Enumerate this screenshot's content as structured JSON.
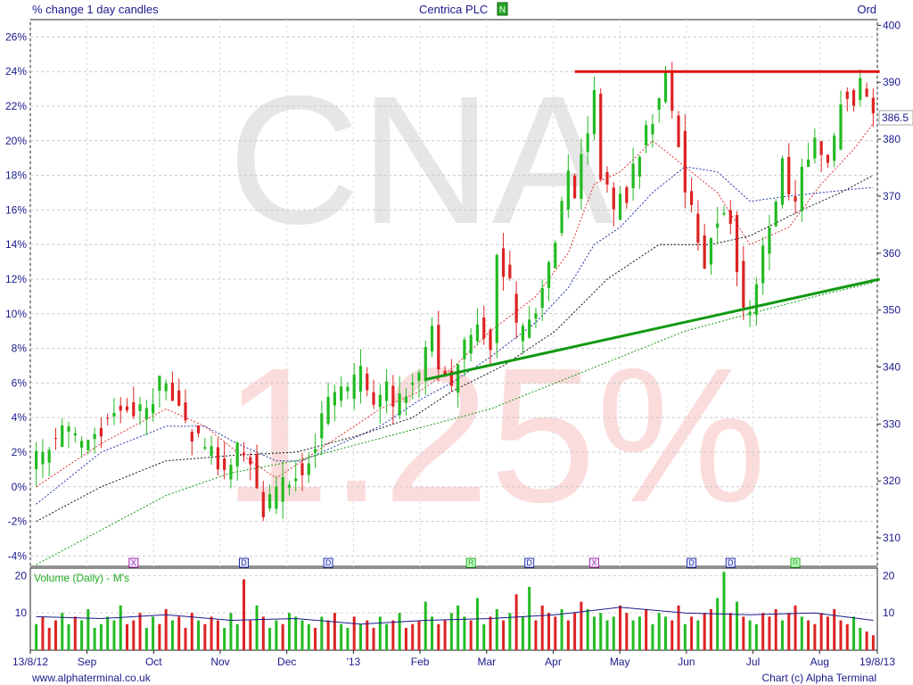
{
  "header": {
    "left_title": "% change 1 day candles",
    "center_title": "Centrica PLC",
    "center_badge": "N",
    "right_title": "Ord"
  },
  "watermark": {
    "ticker": "CNA",
    "change": "1.25%"
  },
  "footer": {
    "left": "www.alphaterminal.co.uk",
    "right": "Chart (c) Alpha Terminal"
  },
  "colors": {
    "up": "#22bb22",
    "down": "#dd2222",
    "axis_text": "#1a1a8c",
    "resistance": "#dd1111",
    "support": "#119911",
    "watermark_ticker": "#e6e6e6",
    "watermark_change": "#fbdcdc"
  },
  "chart_data": [
    {
      "type": "candlestick",
      "title": "Centrica PLC",
      "xlabel": "",
      "ylabel": "",
      "x_range": [
        "13/8/12",
        "19/8/13"
      ],
      "x_tick_labels": [
        "13/8/12",
        "Sep",
        "Oct",
        "Nov",
        "Dec",
        "'13",
        "Feb",
        "Mar",
        "Apr",
        "May",
        "Jun",
        "Jul",
        "Aug",
        "19/8/13"
      ],
      "y_left_ticks": [
        "26%",
        "24%",
        "22%",
        "20%",
        "18%",
        "16%",
        "14%",
        "12%",
        "10%",
        "8%",
        "6%",
        "4%",
        "2%",
        "0%",
        "-2%",
        "-4%"
      ],
      "y_left_range": [
        -4.6,
        27
      ],
      "y_right_ticks": [
        "400",
        "390",
        "380",
        "370",
        "360",
        "350",
        "340",
        "330",
        "320",
        "310"
      ],
      "y_right_range": [
        305,
        401
      ],
      "last_price_label": "386.5",
      "grid": true,
      "price_path_pct": [
        [
          0,
          1.5
        ],
        [
          4,
          3.2
        ],
        [
          8,
          2.5
        ],
        [
          12,
          4.5
        ],
        [
          16,
          4.2
        ],
        [
          20,
          6.5
        ],
        [
          21,
          5.5
        ],
        [
          23,
          3.5
        ],
        [
          27,
          2.0
        ],
        [
          29,
          1.0
        ],
        [
          31,
          2.5
        ],
        [
          33,
          1.5
        ],
        [
          35,
          -1.5
        ],
        [
          36,
          -1.0
        ],
        [
          38,
          0.0
        ],
        [
          40,
          1.0
        ],
        [
          42,
          1.5
        ],
        [
          44,
          4.0
        ],
        [
          46,
          5.5
        ],
        [
          48,
          5.5
        ],
        [
          50,
          6.5
        ],
        [
          52,
          4.5
        ],
        [
          54,
          5.5
        ],
        [
          55,
          4.5
        ],
        [
          57,
          5.5
        ],
        [
          59,
          6.5
        ],
        [
          61,
          9.5
        ],
        [
          62,
          7.0
        ],
        [
          63,
          6.5
        ],
        [
          64,
          6.0
        ],
        [
          66,
          8.0
        ],
        [
          68,
          9.5
        ],
        [
          70,
          8.5
        ],
        [
          71,
          13.5
        ],
        [
          73,
          11.5
        ],
        [
          74,
          9.0
        ],
        [
          75,
          9.0
        ],
        [
          77,
          10.0
        ],
        [
          79,
          13.0
        ],
        [
          81,
          16.0
        ],
        [
          82,
          18.5
        ],
        [
          83,
          17.0
        ],
        [
          84,
          19.0
        ],
        [
          86,
          22.5
        ],
        [
          87,
          18.0
        ],
        [
          89,
          16.0
        ],
        [
          90,
          17.5
        ],
        [
          91,
          17.0
        ],
        [
          92,
          18.5
        ],
        [
          93,
          19.5
        ],
        [
          95,
          21.5
        ],
        [
          97,
          23.5
        ],
        [
          98,
          21.5
        ],
        [
          99,
          20.0
        ],
        [
          100,
          17.0
        ],
        [
          101,
          16.0
        ],
        [
          102,
          14.5
        ],
        [
          103,
          12.5
        ],
        [
          104,
          14.5
        ],
        [
          105,
          15.5
        ],
        [
          106,
          16.0
        ],
        [
          107,
          15.5
        ],
        [
          108,
          13.0
        ],
        [
          109,
          10.5
        ],
        [
          110,
          10.0
        ],
        [
          111,
          12.0
        ],
        [
          113,
          15.0
        ],
        [
          114,
          16.5
        ],
        [
          115,
          18.5
        ],
        [
          116,
          17.0
        ],
        [
          117,
          16.5
        ],
        [
          119,
          19.5
        ],
        [
          120,
          20.5
        ],
        [
          121,
          19.0
        ],
        [
          122,
          18.5
        ],
        [
          123,
          20.0
        ],
        [
          124,
          22.5
        ],
        [
          125,
          23.0
        ],
        [
          126,
          22.0
        ],
        [
          127,
          23.5
        ],
        [
          128,
          22.5
        ],
        [
          129,
          21.0
        ]
      ],
      "moving_averages": {
        "red_short_pct": [
          [
            0,
            0.0
          ],
          [
            10,
            2.5
          ],
          [
            20,
            4.5
          ],
          [
            26,
            3.5
          ],
          [
            31,
            2.0
          ],
          [
            37,
            0.5
          ],
          [
            41,
            1.5
          ],
          [
            47,
            3.0
          ],
          [
            53,
            4.5
          ],
          [
            59,
            5.5
          ],
          [
            64,
            6.8
          ],
          [
            70,
            9.0
          ],
          [
            77,
            11.0
          ],
          [
            82,
            13.5
          ],
          [
            86,
            17.5
          ],
          [
            90,
            18.2
          ],
          [
            95,
            20.0
          ],
          [
            100,
            18.5
          ],
          [
            105,
            17.0
          ],
          [
            110,
            14.0
          ],
          [
            116,
            15.0
          ],
          [
            121,
            17.5
          ],
          [
            126,
            19.5
          ],
          [
            129,
            21.0
          ]
        ],
        "blue_medium_pct": [
          [
            0,
            -1.0
          ],
          [
            10,
            2.0
          ],
          [
            20,
            3.5
          ],
          [
            26,
            3.5
          ],
          [
            31,
            2.5
          ],
          [
            37,
            1.5
          ],
          [
            41,
            1.5
          ],
          [
            47,
            2.5
          ],
          [
            53,
            3.5
          ],
          [
            59,
            5.0
          ],
          [
            64,
            6.0
          ],
          [
            70,
            7.5
          ],
          [
            77,
            9.5
          ],
          [
            82,
            11.5
          ],
          [
            86,
            14.0
          ],
          [
            90,
            15.0
          ],
          [
            95,
            17.0
          ],
          [
            100,
            18.5
          ],
          [
            105,
            18.2
          ],
          [
            110,
            16.5
          ],
          [
            116,
            16.8
          ],
          [
            121,
            17.0
          ],
          [
            126,
            17.2
          ],
          [
            129,
            17.3
          ]
        ],
        "black_long_pct": [
          [
            0,
            -2.0
          ],
          [
            10,
            0.0
          ],
          [
            20,
            1.5
          ],
          [
            30,
            1.8
          ],
          [
            40,
            2.0
          ],
          [
            50,
            3.0
          ],
          [
            58,
            4.0
          ],
          [
            64,
            5.5
          ],
          [
            72,
            7.0
          ],
          [
            80,
            9.0
          ],
          [
            88,
            12.0
          ],
          [
            96,
            14.0
          ],
          [
            104,
            14.0
          ],
          [
            110,
            14.5
          ],
          [
            118,
            16.0
          ],
          [
            124,
            17.0
          ],
          [
            129,
            18.0
          ]
        ],
        "green_longest_pct": [
          [
            0,
            -4.5
          ],
          [
            10,
            -2.5
          ],
          [
            20,
            -0.5
          ],
          [
            30,
            0.8
          ],
          [
            40,
            1.5
          ],
          [
            50,
            2.5
          ],
          [
            60,
            3.5
          ],
          [
            70,
            4.5
          ],
          [
            80,
            6.0
          ],
          [
            90,
            7.5
          ],
          [
            100,
            9.0
          ],
          [
            110,
            10.0
          ],
          [
            120,
            11.0
          ],
          [
            129,
            11.8
          ]
        ]
      },
      "trendlines": {
        "resistance": {
          "from": [
            83,
            24.0
          ],
          "to": [
            130,
            24.0
          ]
        },
        "support": {
          "from": [
            60,
            6.2
          ],
          "to": [
            130,
            12.0
          ]
        }
      },
      "event_markers": [
        {
          "type": "X",
          "at": 15
        },
        {
          "type": "D",
          "at": 32
        },
        {
          "type": "D",
          "at": 45
        },
        {
          "type": "R",
          "at": 67
        },
        {
          "type": "D",
          "at": 76
        },
        {
          "type": "X",
          "at": 86
        },
        {
          "type": "D",
          "at": 101
        },
        {
          "type": "D",
          "at": 107
        },
        {
          "type": "R",
          "at": 117
        }
      ]
    },
    {
      "type": "bar",
      "title": "Volume (Daily) - M's",
      "y_ticks": [
        "20",
        "10"
      ],
      "y_range": [
        0,
        22
      ],
      "volume_avg_m": [
        [
          0,
          9.0
        ],
        [
          10,
          8.5
        ],
        [
          20,
          9.5
        ],
        [
          30,
          8.0
        ],
        [
          40,
          8.5
        ],
        [
          50,
          7.0
        ],
        [
          60,
          8.0
        ],
        [
          70,
          8.5
        ],
        [
          80,
          9.5
        ],
        [
          90,
          11.5
        ],
        [
          100,
          10.0
        ],
        [
          110,
          9.5
        ],
        [
          120,
          10.0
        ],
        [
          129,
          8.0
        ]
      ],
      "volume_m": [
        7,
        9,
        6,
        8,
        10,
        7,
        9,
        8,
        11,
        6,
        7,
        9,
        8,
        12,
        7,
        8,
        10,
        6,
        9,
        7,
        11,
        8,
        9,
        6,
        10,
        8,
        7,
        9,
        8,
        6,
        10,
        7,
        19,
        8,
        12,
        9,
        6,
        8,
        7,
        10,
        9,
        8,
        7,
        6,
        9,
        8,
        10,
        7,
        6,
        9,
        7,
        8,
        6,
        9,
        7,
        8,
        10,
        6,
        7,
        8,
        13,
        9,
        7,
        8,
        10,
        12,
        9,
        8,
        14,
        7,
        9,
        11,
        8,
        10,
        15,
        9,
        17,
        8,
        12,
        10,
        9,
        11,
        8,
        10,
        13,
        11,
        9,
        10,
        8,
        9,
        12,
        10,
        8,
        9,
        11,
        7,
        10,
        9,
        8,
        12,
        7,
        9,
        8,
        10,
        11,
        14,
        21,
        10,
        13,
        9,
        8,
        7,
        10,
        9,
        11,
        8,
        10,
        12,
        9,
        8,
        7,
        10,
        9,
        11,
        8,
        7,
        9,
        6,
        5,
        4
      ]
    }
  ]
}
